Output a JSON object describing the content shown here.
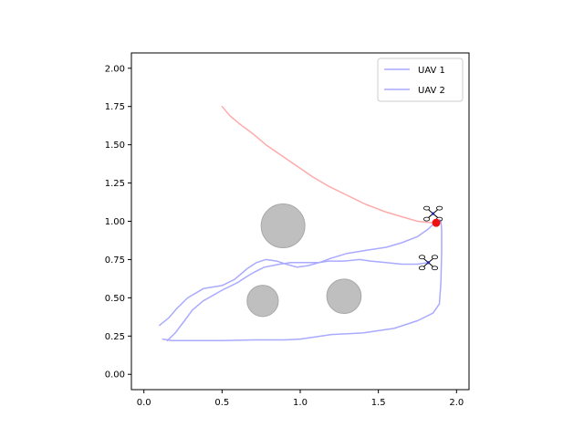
{
  "chart_data": {
    "type": "line",
    "title": "",
    "xlabel": "",
    "ylabel": "",
    "xlim": [
      -0.08,
      2.08
    ],
    "ylim": [
      -0.1,
      2.1
    ],
    "grid": false,
    "legend_position": "top-right",
    "x_ticks": [
      "0.0",
      "0.5",
      "1.0",
      "1.5",
      "2.0"
    ],
    "x_tick_values": [
      0,
      0.5,
      1.0,
      1.5,
      2.0
    ],
    "y_ticks": [
      "0.00",
      "0.25",
      "0.50",
      "0.75",
      "1.00",
      "1.25",
      "1.50",
      "1.75",
      "2.00"
    ],
    "y_tick_values": [
      0,
      0.25,
      0.5,
      0.75,
      1.0,
      1.25,
      1.5,
      1.75,
      2.0
    ],
    "series": [
      {
        "name": "UAV 1",
        "color": "#aaaaff",
        "points": [
          [
            0.12,
            0.23
          ],
          [
            0.18,
            0.22
          ],
          [
            0.3,
            0.22
          ],
          [
            0.5,
            0.22
          ],
          [
            0.7,
            0.225
          ],
          [
            0.9,
            0.225
          ],
          [
            1.0,
            0.23
          ],
          [
            1.2,
            0.26
          ],
          [
            1.4,
            0.27
          ],
          [
            1.6,
            0.3
          ],
          [
            1.75,
            0.35
          ],
          [
            1.85,
            0.4
          ],
          [
            1.89,
            0.46
          ],
          [
            1.9,
            0.6
          ],
          [
            1.905,
            0.8
          ],
          [
            1.905,
            0.95
          ],
          [
            1.9,
            1.0
          ],
          [
            1.89,
            1.01
          ]
        ]
      },
      {
        "name": "UAV 2",
        "color": "#aaaaff",
        "points": [
          [
            0.15,
            0.22
          ],
          [
            0.2,
            0.27
          ],
          [
            0.26,
            0.35
          ],
          [
            0.31,
            0.42
          ],
          [
            0.38,
            0.48
          ],
          [
            0.5,
            0.55
          ],
          [
            0.6,
            0.6
          ],
          [
            0.66,
            0.64
          ],
          [
            0.71,
            0.67
          ],
          [
            0.77,
            0.7
          ],
          [
            0.82,
            0.71
          ],
          [
            0.87,
            0.72
          ],
          [
            0.94,
            0.73
          ],
          [
            1.0,
            0.73
          ],
          [
            1.08,
            0.73
          ],
          [
            1.12,
            0.73
          ],
          [
            1.18,
            0.74
          ],
          [
            1.28,
            0.74
          ],
          [
            1.38,
            0.75
          ],
          [
            1.45,
            0.74
          ],
          [
            1.55,
            0.73
          ],
          [
            1.65,
            0.72
          ],
          [
            1.75,
            0.72
          ],
          [
            1.82,
            0.73
          ]
        ]
      },
      {
        "name": "",
        "color": "#aaaaff",
        "points": [
          [
            0.1,
            0.32
          ],
          [
            0.16,
            0.37
          ],
          [
            0.21,
            0.43
          ],
          [
            0.28,
            0.5
          ],
          [
            0.38,
            0.56
          ],
          [
            0.5,
            0.58
          ],
          [
            0.58,
            0.62
          ],
          [
            0.66,
            0.69
          ],
          [
            0.72,
            0.73
          ],
          [
            0.78,
            0.75
          ],
          [
            0.85,
            0.74
          ],
          [
            0.91,
            0.72
          ],
          [
            0.98,
            0.7
          ],
          [
            1.05,
            0.71
          ],
          [
            1.12,
            0.73
          ],
          [
            1.2,
            0.76
          ],
          [
            1.3,
            0.79
          ],
          [
            1.42,
            0.81
          ],
          [
            1.55,
            0.83
          ],
          [
            1.65,
            0.86
          ],
          [
            1.75,
            0.9
          ],
          [
            1.82,
            0.95
          ],
          [
            1.87,
            1.0
          ]
        ]
      },
      {
        "name": "",
        "color": "#ffaaaa",
        "points": [
          [
            0.5,
            1.75
          ],
          [
            0.55,
            1.69
          ],
          [
            0.62,
            1.63
          ],
          [
            0.7,
            1.57
          ],
          [
            0.78,
            1.5
          ],
          [
            0.88,
            1.43
          ],
          [
            0.98,
            1.36
          ],
          [
            1.08,
            1.29
          ],
          [
            1.18,
            1.23
          ],
          [
            1.3,
            1.17
          ],
          [
            1.42,
            1.11
          ],
          [
            1.55,
            1.06
          ],
          [
            1.65,
            1.03
          ],
          [
            1.75,
            1.0
          ],
          [
            1.85,
            0.99
          ]
        ]
      }
    ],
    "obstacles": [
      {
        "x": 0.89,
        "y": 0.97,
        "r": 0.14
      },
      {
        "x": 0.76,
        "y": 0.48,
        "r": 0.1
      },
      {
        "x": 1.28,
        "y": 0.51,
        "r": 0.11
      }
    ],
    "obstacle_color": "#bfbfbf",
    "target": {
      "x": 1.87,
      "y": 0.99,
      "color": "#ee1111"
    },
    "drones": [
      {
        "x": 1.85,
        "y": 1.05
      },
      {
        "x": 1.82,
        "y": 0.73
      }
    ]
  }
}
